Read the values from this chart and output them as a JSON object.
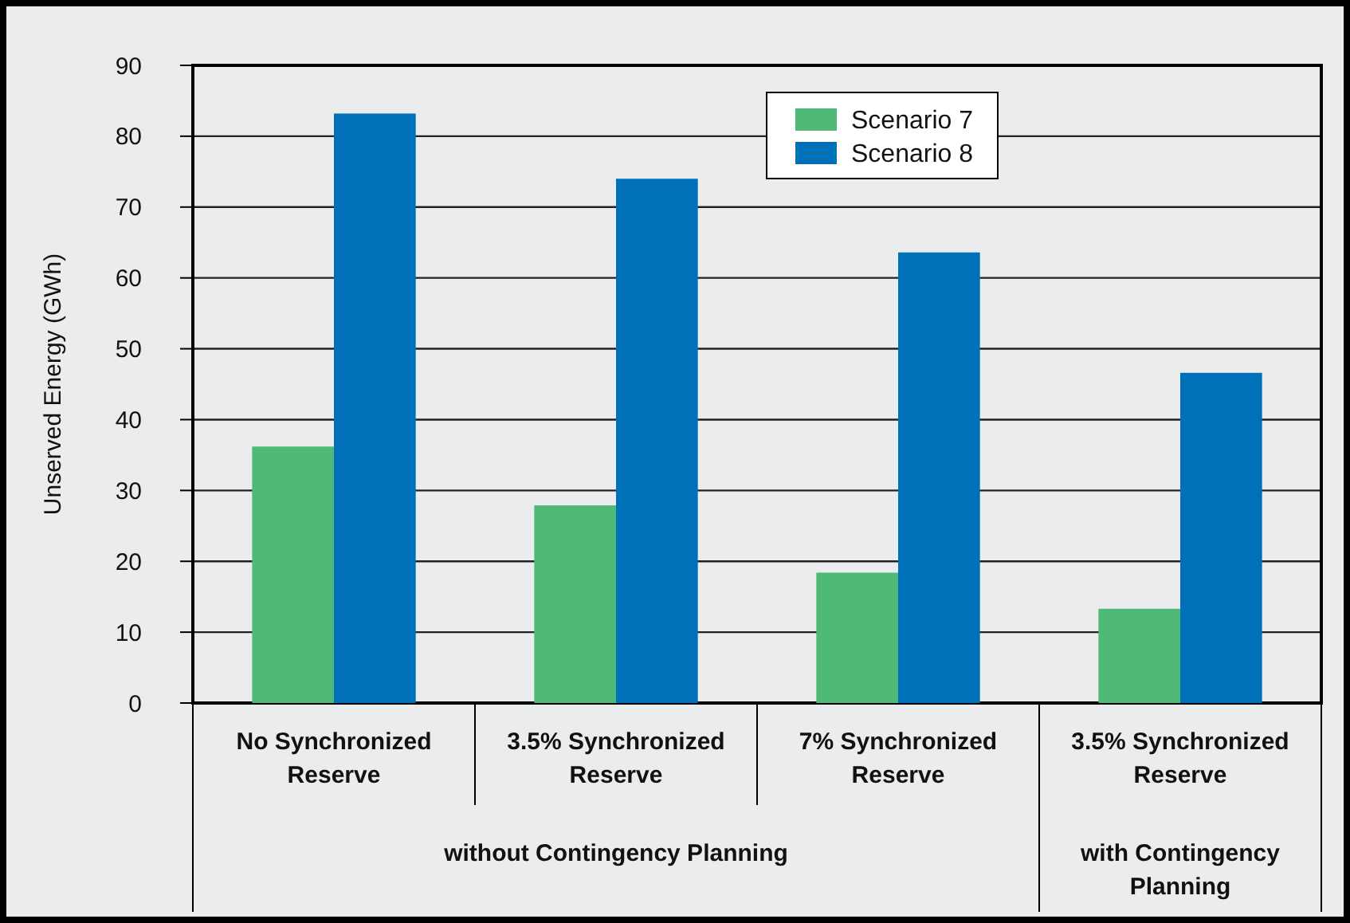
{
  "chart_data": {
    "type": "bar",
    "ylabel": "Unserved Energy (GWh)",
    "categories": [
      "No Synchronized Reserve",
      "3.5% Synchronized Reserve",
      "7% Synchronized Reserve",
      "3.5% Synchronized Reserve"
    ],
    "series": [
      {
        "name": "Scenario 7",
        "color": "#4fb978",
        "values": [
          36.2,
          27.9,
          18.4,
          13.3
        ]
      },
      {
        "name": "Scenario 8",
        "color": "#0071b9",
        "values": [
          83.2,
          74.0,
          63.6,
          46.6
        ]
      }
    ],
    "ylim": [
      0,
      90
    ],
    "yticks": [
      0,
      10,
      20,
      30,
      40,
      50,
      60,
      70,
      80,
      90
    ],
    "grid": "y",
    "legend": "top right",
    "annotations": [
      "without Contingency Planning",
      "with Contingency Planning"
    ]
  }
}
